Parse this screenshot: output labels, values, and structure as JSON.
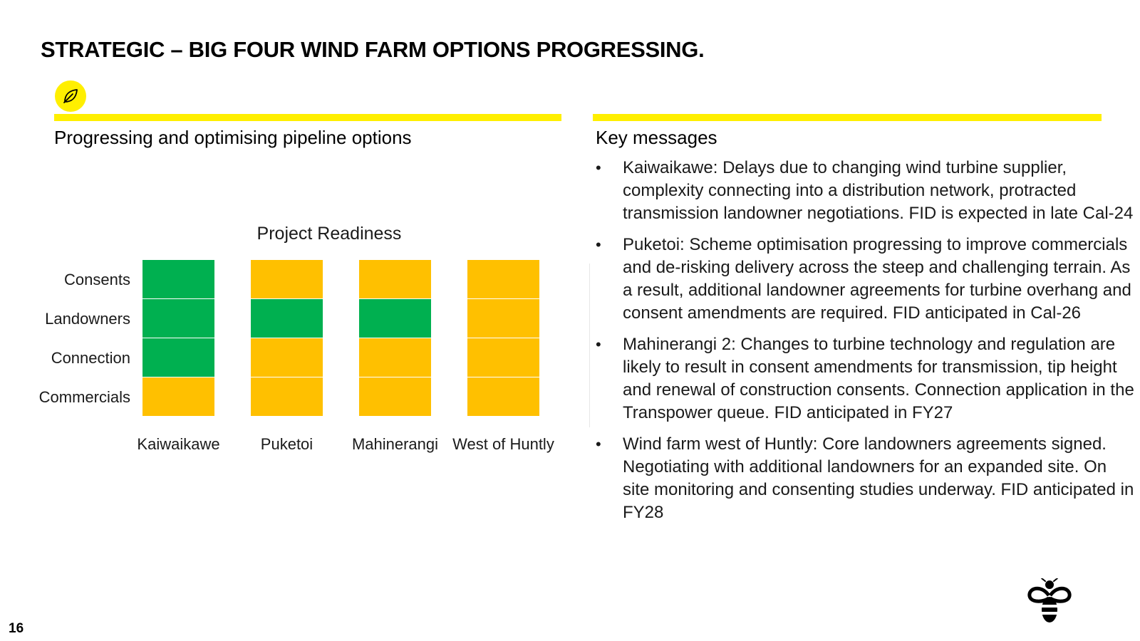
{
  "slide": {
    "title": "STRATEGIC – BIG FOUR WIND FARM OPTIONS PROGRESSING.",
    "page_number": "16",
    "badge_icon": "leaf-icon",
    "logo_icon": "bee-logo-icon",
    "accent_color": "#ffef00"
  },
  "left_panel": {
    "heading": "Progressing and optimising pipeline options"
  },
  "chart_data": {
    "type": "heatmap",
    "title": "Project Readiness",
    "rows": [
      "Consents",
      "Landowners",
      "Connection",
      "Commercials"
    ],
    "columns": [
      "Kaiwaikawe",
      "Puketoi",
      "Mahinerangi",
      "West of Huntly"
    ],
    "status": [
      [
        "green",
        "amber",
        "amber",
        "amber"
      ],
      [
        "green",
        "green",
        "green",
        "amber"
      ],
      [
        "green",
        "amber",
        "amber",
        "amber"
      ],
      [
        "amber",
        "amber",
        "amber",
        "amber"
      ]
    ],
    "status_colors": {
      "green": "#00b050",
      "amber": "#ffc000"
    },
    "legend": "none",
    "grid": false
  },
  "right_panel": {
    "heading": "Key messages",
    "bullet_symbol": "•",
    "messages": [
      "Kaiwaikawe: Delays due to changing wind turbine supplier, complexity connecting into a distribution network, protracted transmission landowner negotiations. FID is expected in late Cal-24",
      "Puketoi: Scheme optimisation progressing to improve commercials and de-risking delivery across the steep and challenging terrain. As a result, additional landowner agreements for turbine overhang and consent amendments are required. FID anticipated in Cal-26",
      "Mahinerangi 2: Changes to turbine technology and regulation are likely to result in consent amendments for transmission, tip height and renewal of construction consents. Connection application in the Transpower queue. FID anticipated in FY27",
      "Wind farm west of Huntly: Core landowners agreements signed. Negotiating with additional landowners for an expanded site. On site monitoring and consenting studies underway. FID anticipated in FY28"
    ]
  }
}
